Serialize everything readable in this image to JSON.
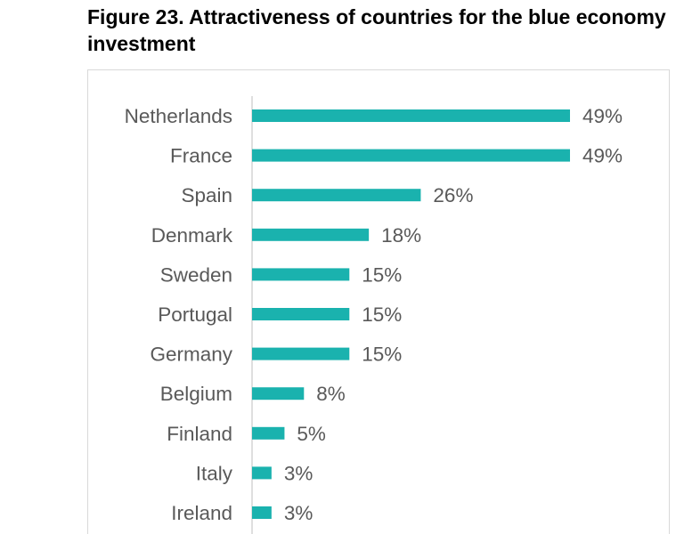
{
  "title": "Figure 23. Attractiveness of countries for the blue economy investment",
  "colors": {
    "bar": "#1ab2ae",
    "label": "#595959",
    "axis": "#bfbfbf"
  },
  "chart_data": {
    "type": "bar",
    "orientation": "horizontal",
    "title": "Figure 23. Attractiveness of countries for the blue economy investment",
    "xlabel": "",
    "ylabel": "",
    "xlim": [
      0,
      49
    ],
    "grid": false,
    "legend": "none",
    "categories": [
      "Netherlands",
      "France",
      "Spain",
      "Denmark",
      "Sweden",
      "Portugal",
      "Germany",
      "Belgium",
      "Finland",
      "Italy",
      "Ireland"
    ],
    "values": [
      49,
      49,
      26,
      18,
      15,
      15,
      15,
      8,
      5,
      3,
      3
    ],
    "value_labels": [
      "49%",
      "49%",
      "26%",
      "18%",
      "15%",
      "15%",
      "15%",
      "8%",
      "5%",
      "3%",
      "3%"
    ]
  }
}
